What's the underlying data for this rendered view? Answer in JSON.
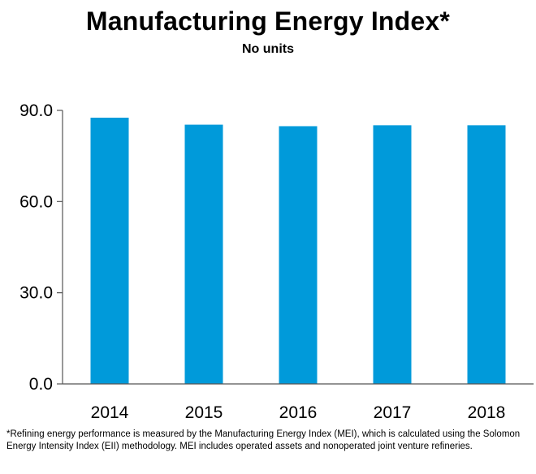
{
  "title": "Manufacturing Energy Index*",
  "subtitle": "No units",
  "footnote": "*Refining energy performance is measured by the Manufacturing Energy Index (MEI), which is calculated using the Solomon Energy Intensity Index (EII) methodology. MEI includes operated assets and nonoperated joint venture refineries.",
  "colors": {
    "bar": "#009ADA",
    "axis": "#555555",
    "grid": "#999999"
  },
  "chart_data": {
    "type": "bar",
    "title": "Manufacturing Energy Index*",
    "subtitle": "No units",
    "categories": [
      "2014",
      "2015",
      "2016",
      "2017",
      "2018"
    ],
    "values": [
      87.6,
      85.3,
      84.8,
      85.1,
      85.1
    ],
    "ylim": [
      0,
      90
    ],
    "yticks": [
      "0.0",
      "30.0",
      "60.0",
      "90.0"
    ],
    "ytick_values": [
      0,
      30,
      60,
      90
    ],
    "grid": false,
    "legend": "none"
  }
}
